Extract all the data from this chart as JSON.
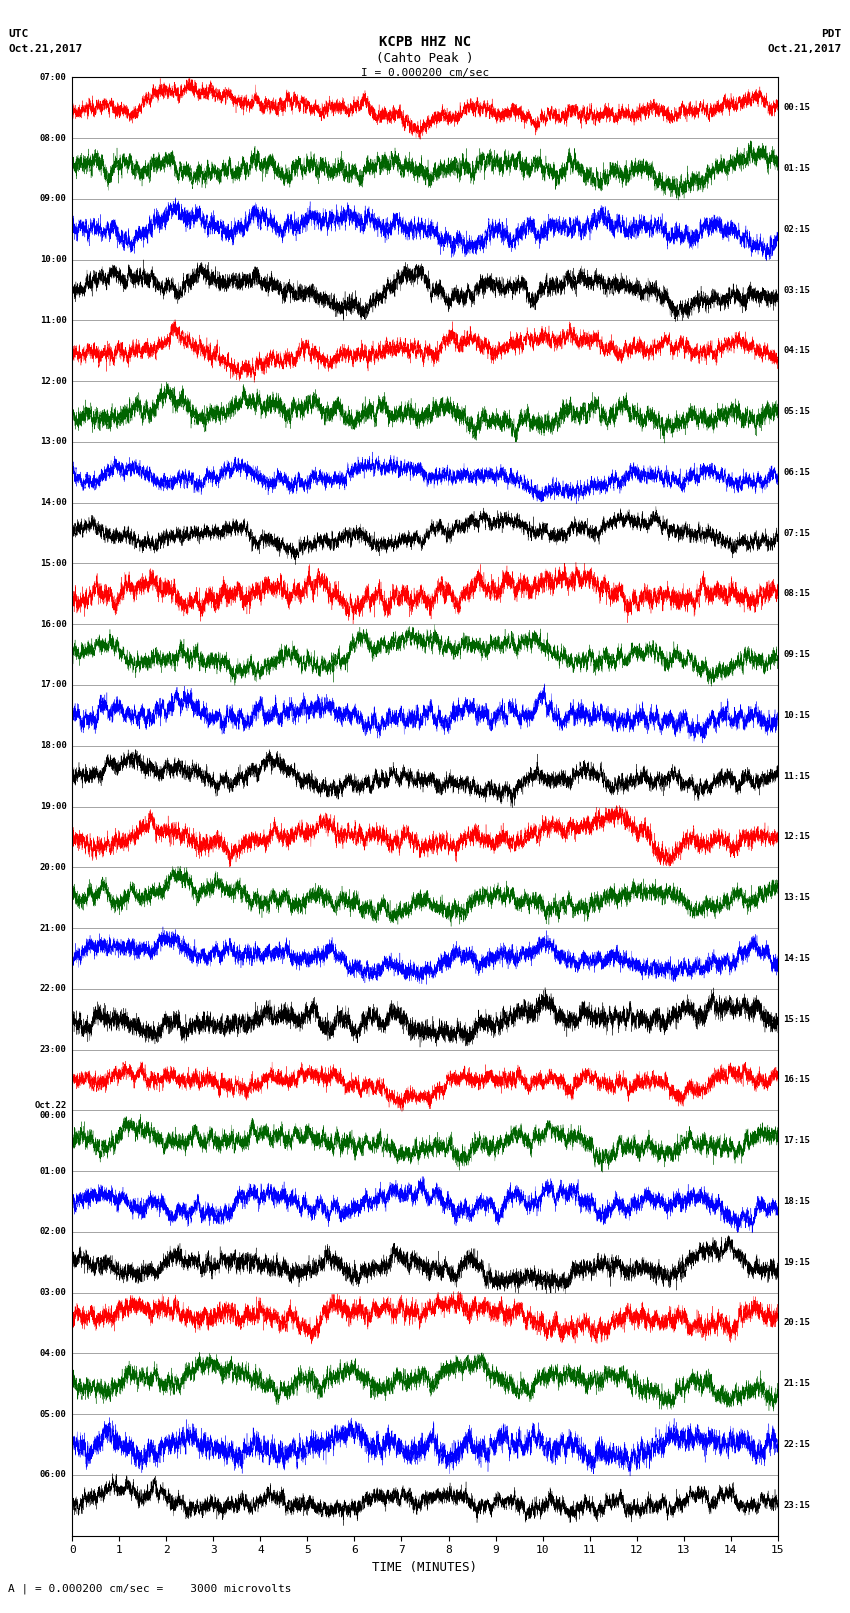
{
  "title_line1": "KCPB HHZ NC",
  "title_line2": "(Cahto Peak )",
  "scale_label": "I = 0.000200 cm/sec",
  "footer_label": "A | = 0.000200 cm/sec =    3000 microvolts",
  "left_label_top": "UTC",
  "left_label_date": "Oct.21,2017",
  "right_label_top": "PDT",
  "right_label_date": "Oct.21,2017",
  "xlabel": "TIME (MINUTES)",
  "x_ticks": [
    0,
    1,
    2,
    3,
    4,
    5,
    6,
    7,
    8,
    9,
    10,
    11,
    12,
    13,
    14,
    15
  ],
  "left_times": [
    "07:00",
    "08:00",
    "09:00",
    "10:00",
    "11:00",
    "12:00",
    "13:00",
    "14:00",
    "15:00",
    "16:00",
    "17:00",
    "18:00",
    "19:00",
    "20:00",
    "21:00",
    "22:00",
    "23:00",
    "Oct.22\n00:00",
    "01:00",
    "02:00",
    "03:00",
    "04:00",
    "05:00",
    "06:00"
  ],
  "right_times": [
    "00:15",
    "01:15",
    "02:15",
    "03:15",
    "04:15",
    "05:15",
    "06:15",
    "07:15",
    "08:15",
    "09:15",
    "10:15",
    "11:15",
    "12:15",
    "13:15",
    "14:15",
    "15:15",
    "16:15",
    "17:15",
    "18:15",
    "19:15",
    "20:15",
    "21:15",
    "22:15",
    "23:15"
  ],
  "num_rows": 24,
  "samples_per_row": 9000,
  "bg_color": "#ffffff",
  "row_colors": [
    "red",
    "darkgreen",
    "blue",
    "black",
    "red",
    "darkgreen",
    "blue",
    "black",
    "red",
    "darkgreen",
    "blue",
    "black",
    "red",
    "darkgreen",
    "blue",
    "black",
    "red",
    "darkgreen",
    "blue",
    "black",
    "red",
    "darkgreen",
    "blue",
    "black"
  ],
  "fig_width": 8.5,
  "fig_height": 16.13,
  "dpi": 100
}
